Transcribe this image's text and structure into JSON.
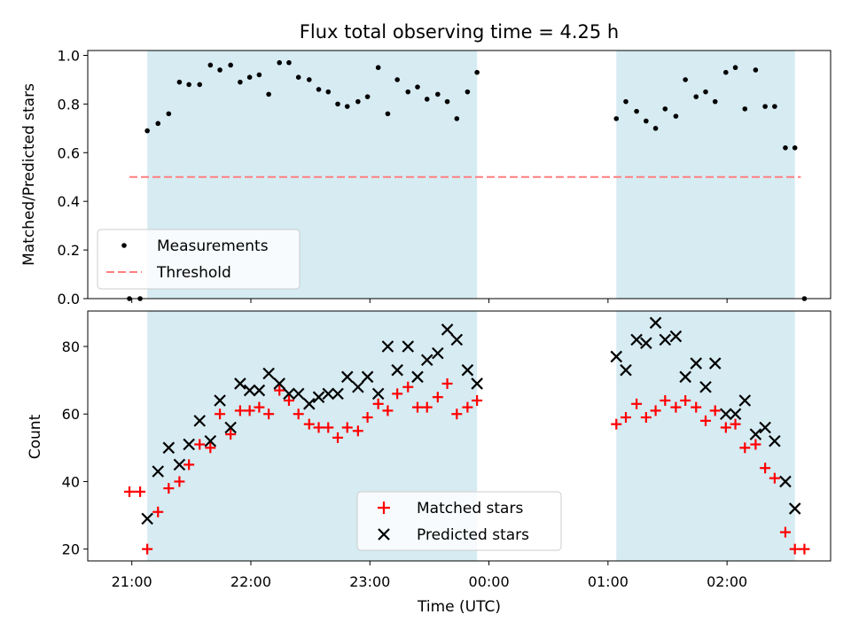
{
  "chart_data": {
    "type": "scatter",
    "title": "Flux total observing time = 4.25 h",
    "xlabel": "Time (UTC)",
    "xlim_hours": [
      20.63,
      26.87
    ],
    "x_ticks": [
      {
        "h": 21,
        "label": "21:00"
      },
      {
        "h": 22,
        "label": "22:00"
      },
      {
        "h": 23,
        "label": "23:00"
      },
      {
        "h": 24,
        "label": "00:00"
      },
      {
        "h": 25,
        "label": "01:00"
      },
      {
        "h": 26,
        "label": "02:00"
      }
    ],
    "shaded_intervals": [
      [
        21.13,
        23.9
      ],
      [
        25.07,
        26.57
      ]
    ],
    "shade_color": "#add8e6",
    "panels": [
      {
        "ylabel": "Matched/Predicted stars",
        "ylim": [
          0,
          1.02
        ],
        "y_ticks": [
          0,
          0.2,
          0.4,
          0.6,
          0.8,
          1.0
        ],
        "y_tick_labels": [
          "0.0",
          "0.2",
          "0.4",
          "0.6",
          "0.8",
          "1.0"
        ],
        "threshold": {
          "name": "Threshold",
          "value": 0.5,
          "x_range": [
            20.98,
            26.62
          ],
          "color": "#ff7f7f"
        },
        "series": [
          {
            "name": "Measurements",
            "marker": "dot",
            "color": "#000000",
            "points": [
              [
                20.98,
                0.0
              ],
              [
                21.07,
                0.0
              ],
              [
                21.13,
                0.69
              ],
              [
                21.22,
                0.72
              ],
              [
                21.31,
                0.76
              ],
              [
                21.4,
                0.89
              ],
              [
                21.48,
                0.88
              ],
              [
                21.57,
                0.88
              ],
              [
                21.66,
                0.96
              ],
              [
                21.74,
                0.94
              ],
              [
                21.83,
                0.96
              ],
              [
                21.91,
                0.89
              ],
              [
                21.99,
                0.91
              ],
              [
                22.07,
                0.92
              ],
              [
                22.15,
                0.84
              ],
              [
                22.24,
                0.97
              ],
              [
                22.32,
                0.97
              ],
              [
                22.4,
                0.91
              ],
              [
                22.49,
                0.9
              ],
              [
                22.57,
                0.86
              ],
              [
                22.65,
                0.85
              ],
              [
                22.73,
                0.8
              ],
              [
                22.81,
                0.79
              ],
              [
                22.9,
                0.81
              ],
              [
                22.98,
                0.83
              ],
              [
                23.07,
                0.95
              ],
              [
                23.15,
                0.76
              ],
              [
                23.23,
                0.9
              ],
              [
                23.32,
                0.85
              ],
              [
                23.4,
                0.87
              ],
              [
                23.48,
                0.82
              ],
              [
                23.57,
                0.84
              ],
              [
                23.65,
                0.81
              ],
              [
                23.73,
                0.74
              ],
              [
                23.82,
                0.85
              ],
              [
                23.9,
                0.93
              ],
              [
                25.07,
                0.74
              ],
              [
                25.15,
                0.81
              ],
              [
                25.24,
                0.77
              ],
              [
                25.32,
                0.73
              ],
              [
                25.4,
                0.7
              ],
              [
                25.48,
                0.78
              ],
              [
                25.57,
                0.75
              ],
              [
                25.65,
                0.9
              ],
              [
                25.74,
                0.83
              ],
              [
                25.82,
                0.85
              ],
              [
                25.9,
                0.81
              ],
              [
                25.99,
                0.93
              ],
              [
                26.07,
                0.95
              ],
              [
                26.15,
                0.78
              ],
              [
                26.24,
                0.94
              ],
              [
                26.32,
                0.79
              ],
              [
                26.4,
                0.79
              ],
              [
                26.49,
                0.62
              ],
              [
                26.57,
                0.62
              ],
              [
                26.65,
                0.0
              ]
            ]
          }
        ],
        "legend": {
          "position": "lower-left",
          "items": [
            "Measurements",
            "Threshold"
          ]
        }
      },
      {
        "ylabel": "Count",
        "ylim": [
          16.5,
          90.5
        ],
        "y_ticks": [
          20,
          40,
          60,
          80
        ],
        "y_tick_labels": [
          "20",
          "40",
          "60",
          "80"
        ],
        "series": [
          {
            "name": "Matched stars",
            "marker": "plus",
            "color": "#ff0000",
            "points": [
              [
                20.98,
                37
              ],
              [
                21.07,
                37
              ],
              [
                21.13,
                20
              ],
              [
                21.22,
                31
              ],
              [
                21.31,
                38
              ],
              [
                21.4,
                40
              ],
              [
                21.48,
                45
              ],
              [
                21.57,
                51
              ],
              [
                21.66,
                50
              ],
              [
                21.74,
                60
              ],
              [
                21.83,
                54
              ],
              [
                21.91,
                61
              ],
              [
                21.99,
                61
              ],
              [
                22.07,
                62
              ],
              [
                22.15,
                60
              ],
              [
                22.24,
                67
              ],
              [
                22.32,
                64
              ],
              [
                22.4,
                60
              ],
              [
                22.49,
                57
              ],
              [
                22.57,
                56
              ],
              [
                22.65,
                56
              ],
              [
                22.73,
                53
              ],
              [
                22.81,
                56
              ],
              [
                22.9,
                55
              ],
              [
                22.98,
                59
              ],
              [
                23.07,
                63
              ],
              [
                23.15,
                61
              ],
              [
                23.23,
                66
              ],
              [
                23.32,
                68
              ],
              [
                23.4,
                62
              ],
              [
                23.48,
                62
              ],
              [
                23.57,
                65
              ],
              [
                23.65,
                69
              ],
              [
                23.73,
                60
              ],
              [
                23.82,
                62
              ],
              [
                23.9,
                64
              ],
              [
                25.07,
                57
              ],
              [
                25.15,
                59
              ],
              [
                25.24,
                63
              ],
              [
                25.32,
                59
              ],
              [
                25.4,
                61
              ],
              [
                25.48,
                64
              ],
              [
                25.57,
                62
              ],
              [
                25.65,
                64
              ],
              [
                25.74,
                62
              ],
              [
                25.82,
                58
              ],
              [
                25.9,
                61
              ],
              [
                25.99,
                56
              ],
              [
                26.07,
                57
              ],
              [
                26.15,
                50
              ],
              [
                26.24,
                51
              ],
              [
                26.32,
                44
              ],
              [
                26.4,
                41
              ],
              [
                26.49,
                25
              ],
              [
                26.57,
                20
              ],
              [
                26.65,
                20
              ]
            ]
          },
          {
            "name": "Predicted stars",
            "marker": "x",
            "color": "#000000",
            "points": [
              [
                21.13,
                29
              ],
              [
                21.22,
                43
              ],
              [
                21.31,
                50
              ],
              [
                21.4,
                45
              ],
              [
                21.48,
                51
              ],
              [
                21.57,
                58
              ],
              [
                21.66,
                52
              ],
              [
                21.74,
                64
              ],
              [
                21.83,
                56
              ],
              [
                21.91,
                69
              ],
              [
                21.99,
                67
              ],
              [
                22.07,
                67
              ],
              [
                22.15,
                72
              ],
              [
                22.24,
                69
              ],
              [
                22.32,
                66
              ],
              [
                22.4,
                66
              ],
              [
                22.49,
                63
              ],
              [
                22.57,
                65
              ],
              [
                22.65,
                66
              ],
              [
                22.73,
                66
              ],
              [
                22.81,
                71
              ],
              [
                22.9,
                68
              ],
              [
                22.98,
                71
              ],
              [
                23.07,
                66
              ],
              [
                23.15,
                80
              ],
              [
                23.23,
                73
              ],
              [
                23.32,
                80
              ],
              [
                23.4,
                71
              ],
              [
                23.48,
                76
              ],
              [
                23.57,
                78
              ],
              [
                23.65,
                85
              ],
              [
                23.73,
                82
              ],
              [
                23.82,
                73
              ],
              [
                23.9,
                69
              ],
              [
                25.07,
                77
              ],
              [
                25.15,
                73
              ],
              [
                25.24,
                82
              ],
              [
                25.32,
                81
              ],
              [
                25.4,
                87
              ],
              [
                25.48,
                82
              ],
              [
                25.57,
                83
              ],
              [
                25.65,
                71
              ],
              [
                25.74,
                75
              ],
              [
                25.82,
                68
              ],
              [
                25.9,
                75
              ],
              [
                25.99,
                60
              ],
              [
                26.07,
                60
              ],
              [
                26.15,
                64
              ],
              [
                26.24,
                54
              ],
              [
                26.32,
                56
              ],
              [
                26.4,
                52
              ],
              [
                26.49,
                40
              ],
              [
                26.57,
                32
              ]
            ]
          }
        ],
        "legend": {
          "position": "lower-center",
          "items": [
            "Matched stars",
            "Predicted stars"
          ]
        }
      }
    ]
  }
}
